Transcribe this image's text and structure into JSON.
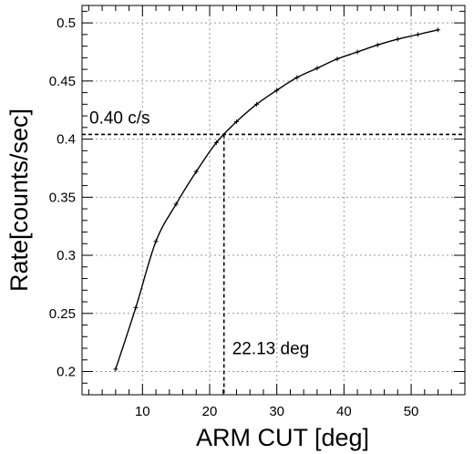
{
  "chart_data": {
    "type": "line",
    "xlabel": "ARM CUT [deg]",
    "ylabel": "Rate[counts/sec]",
    "xlim": [
      1,
      58
    ],
    "ylim": [
      0.18,
      0.515
    ],
    "x_ticks": [
      10,
      20,
      30,
      40,
      50
    ],
    "y_ticks": [
      0.2,
      0.25,
      0.3,
      0.35,
      0.4,
      0.45,
      0.5
    ],
    "x_tick_labels": [
      "10",
      "20",
      "30",
      "40",
      "50"
    ],
    "y_tick_labels": [
      "0.2",
      "0.25",
      "0.3",
      "0.35",
      "0.4",
      "0.45",
      "0.5"
    ],
    "grid": true,
    "series": [
      {
        "x": [
          6,
          9,
          12,
          15,
          18,
          21,
          24,
          27,
          30,
          33,
          36,
          39,
          42,
          45,
          48,
          51,
          54
        ],
        "values": [
          0.202,
          0.255,
          0.312,
          0.344,
          0.372,
          0.397,
          0.415,
          0.43,
          0.442,
          0.453,
          0.461,
          0.469,
          0.475,
          0.481,
          0.486,
          0.49,
          0.494
        ]
      }
    ],
    "annotations": {
      "rate_label": "0.40 c/s",
      "rate_value": 0.404,
      "angle_label": "22.13 deg",
      "angle_value": 22.13
    }
  }
}
